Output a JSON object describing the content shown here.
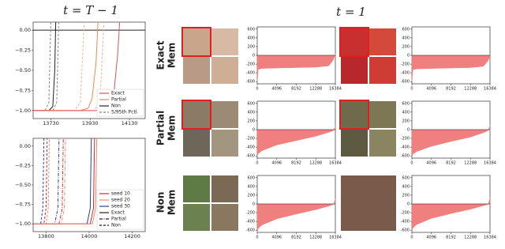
{
  "labels": {
    "left_title": "t = T − 1",
    "right_title": "t = 1",
    "row_labels": [
      [
        "Exact",
        "Mem"
      ],
      [
        "Partial",
        "Mem"
      ],
      [
        "Non",
        "Mem"
      ]
    ]
  },
  "chart_data": [
    {
      "type": "line",
      "xlim": [
        13640,
        14210
      ],
      "ylim": [
        -1.1,
        0.1
      ],
      "xticks": [
        13730,
        13930,
        14130
      ],
      "yticks": [
        {
          "value": 0,
          "label": "0.00"
        },
        {
          "value": -0.25,
          "label": "−0.25"
        },
        {
          "value": -0.5,
          "label": "−0.50"
        },
        {
          "value": -0.75,
          "label": "−0.75"
        },
        {
          "value": -1,
          "label": "−1.00"
        }
      ],
      "legend": [
        {
          "name": "Exact",
          "color": "#e0505a",
          "dash": "solid"
        },
        {
          "name": "Partial",
          "color": "#f08a4b",
          "dash": "solid"
        },
        {
          "name": "Non",
          "color": "#222222",
          "dash": "solid"
        },
        {
          "name": "5/95th Pctl.",
          "color": "#888888",
          "dash": "dashed"
        }
      ],
      "curves": [
        {
          "color": "#222222",
          "dash": "solid",
          "x": [
            13640,
            14210
          ],
          "values": [
            0,
            0
          ]
        },
        {
          "color": "#888888",
          "dash": "dashed",
          "x": [
            13640,
            13700,
            13720,
            13730
          ],
          "values": [
            -1,
            -1,
            -0.9,
            0.1
          ]
        },
        {
          "color": "#888888",
          "dash": "dashed",
          "x": [
            13640,
            13740,
            13760,
            13770
          ],
          "values": [
            -1,
            -1,
            -0.9,
            0.1
          ]
        },
        {
          "color": "#222222",
          "dash": "solid",
          "x": [
            13640,
            13720,
            13740,
            13750,
            13755
          ],
          "values": [
            -1,
            -1,
            -0.95,
            -0.5,
            0.1
          ]
        },
        {
          "color": "#f5b08a",
          "dash": "dashed",
          "x": [
            13640,
            13850,
            13880,
            13900
          ],
          "values": [
            -1,
            -1,
            -0.9,
            0.1
          ]
        },
        {
          "color": "#f5b08a",
          "dash": "dashed",
          "x": [
            13640,
            13950,
            13980,
            14000
          ],
          "values": [
            -1,
            -1,
            -0.9,
            0.1
          ]
        },
        {
          "color": "#f08a4b",
          "dash": "solid",
          "x": [
            13640,
            13880,
            13920,
            13940,
            13960,
            13970
          ],
          "values": [
            -1,
            -1,
            -0.97,
            -0.85,
            -0.4,
            0.1
          ]
        },
        {
          "color": "#e0505a",
          "dash": "solid",
          "x": [
            13640,
            13990,
            14030,
            14050,
            14070,
            14080
          ],
          "values": [
            -1,
            -1,
            -0.97,
            -0.8,
            -0.3,
            0.1
          ]
        }
      ]
    },
    {
      "type": "line",
      "xlim": [
        13740,
        14260
      ],
      "ylim": [
        -1.1,
        0.1
      ],
      "xticks": [
        13800,
        14000,
        14200
      ],
      "yticks": [
        {
          "value": 0,
          "label": "0.00"
        },
        {
          "value": -0.25,
          "label": "−0.25"
        },
        {
          "value": -0.5,
          "label": "−0.50"
        },
        {
          "value": -0.75,
          "label": "−0.75"
        },
        {
          "value": -1,
          "label": "−1.00"
        }
      ],
      "legend": [
        {
          "name": "seed 10",
          "color": "#d62728",
          "dash": "solid"
        },
        {
          "name": "seed 20",
          "color": "#f08a70",
          "dash": "solid"
        },
        {
          "name": "seed 30",
          "color": "#2b3f8f",
          "dash": "solid"
        },
        {
          "name": "Exact",
          "color": "#222222",
          "dash": "solid"
        },
        {
          "name": "Partial",
          "color": "#222222",
          "dash": "dashdot"
        },
        {
          "name": "Non",
          "color": "#222222",
          "dash": "dashed"
        }
      ],
      "curves": [
        {
          "color": "#2b3f8f",
          "dash": "dashed",
          "x": [
            13740,
            13775,
            13785,
            13790
          ],
          "values": [
            -1,
            -1,
            -0.8,
            0.1
          ]
        },
        {
          "color": "#d62728",
          "dash": "dashed",
          "x": [
            13740,
            13790,
            13800,
            13805
          ],
          "values": [
            -1,
            -1,
            -0.8,
            0.1
          ]
        },
        {
          "color": "#f08a70",
          "dash": "dashed",
          "x": [
            13740,
            13800,
            13810,
            13815
          ],
          "values": [
            -1,
            -1,
            -0.8,
            0.1
          ]
        },
        {
          "color": "#2b3f8f",
          "dash": "dashdot",
          "x": [
            13740,
            13840,
            13855,
            13860
          ],
          "values": [
            -1,
            -1,
            -0.8,
            0.1
          ]
        },
        {
          "color": "#d62728",
          "dash": "dashdot",
          "x": [
            13740,
            13860,
            13875,
            13880
          ],
          "values": [
            -1,
            -1,
            -0.8,
            0.1
          ]
        },
        {
          "color": "#f08a70",
          "dash": "dashdot",
          "x": [
            13740,
            13870,
            13885,
            13890
          ],
          "values": [
            -1,
            -1,
            -0.8,
            0.1
          ]
        },
        {
          "color": "#2b3f8f",
          "dash": "solid",
          "x": [
            13740,
            13990,
            14005,
            14010
          ],
          "values": [
            -1,
            -1,
            -0.8,
            0.1
          ]
        },
        {
          "color": "#d62728",
          "dash": "solid",
          "x": [
            13740,
            14005,
            14020,
            14025
          ],
          "values": [
            -1,
            -1,
            -0.8,
            0.1
          ]
        },
        {
          "color": "#f08a70",
          "dash": "solid",
          "x": [
            13740,
            14015,
            14030,
            14035
          ],
          "values": [
            -1,
            -1,
            -0.8,
            0.1
          ]
        }
      ]
    },
    {
      "type": "area",
      "color": "#f08080",
      "xlim": [
        0,
        16384
      ],
      "ylim": [
        -650,
        650
      ],
      "xticks": [
        0,
        4096,
        8192,
        12288,
        16384
      ],
      "yticks": [
        600,
        400,
        200,
        0,
        -200,
        -400,
        -600
      ],
      "x": [
        0,
        200,
        1000,
        4096,
        8192,
        12288,
        15000,
        16000,
        16384
      ],
      "values": [
        -620,
        -320,
        -300,
        -290,
        -280,
        -270,
        -240,
        -100,
        50
      ]
    },
    {
      "type": "area",
      "color": "#f08080",
      "xlim": [
        0,
        16384
      ],
      "ylim": [
        -650,
        650
      ],
      "xticks": [
        0,
        4096,
        8192,
        12288,
        16384
      ],
      "yticks": [
        600,
        400,
        200,
        0,
        -200,
        -400,
        -600
      ],
      "x": [
        0,
        200,
        1000,
        4096,
        8192,
        12288,
        15000,
        16000,
        16384
      ],
      "values": [
        -600,
        -330,
        -310,
        -300,
        -290,
        -280,
        -250,
        -120,
        0
      ]
    },
    {
      "type": "area",
      "color": "#f08080",
      "xlim": [
        0,
        16384
      ],
      "ylim": [
        -650,
        650
      ],
      "xticks": [
        0,
        4096,
        8192,
        12288,
        16384
      ],
      "yticks": [
        600,
        400,
        200,
        0,
        -200,
        -400,
        -600
      ],
      "x": [
        0,
        200,
        1000,
        4096,
        8192,
        12288,
        15000,
        16000,
        16384
      ],
      "values": [
        -600,
        -550,
        -480,
        -350,
        -250,
        -150,
        -60,
        -20,
        80
      ]
    },
    {
      "type": "area",
      "color": "#f08080",
      "xlim": [
        0,
        16384
      ],
      "ylim": [
        -650,
        650
      ],
      "xticks": [
        0,
        4096,
        8192,
        12288,
        16384
      ],
      "yticks": [
        600,
        400,
        200,
        0,
        -200,
        -400,
        -600
      ],
      "x": [
        0,
        200,
        1000,
        4096,
        8192,
        12288,
        15000,
        16000,
        16384
      ],
      "values": [
        -620,
        -560,
        -500,
        -380,
        -270,
        -170,
        -70,
        -20,
        100
      ]
    },
    {
      "type": "area",
      "color": "#f08080",
      "xlim": [
        0,
        16384
      ],
      "ylim": [
        -650,
        650
      ],
      "xticks": [
        0,
        4096,
        8192,
        12288,
        16384
      ],
      "yticks": [
        600,
        400,
        200,
        0,
        -200,
        -400,
        -600
      ],
      "x": [
        0,
        200,
        1000,
        4096,
        8192,
        12288,
        15000,
        16000,
        16384
      ],
      "values": [
        -640,
        -560,
        -480,
        -340,
        -230,
        -130,
        -50,
        -10,
        120
      ]
    },
    {
      "type": "area",
      "color": "#f08080",
      "xlim": [
        0,
        16384
      ],
      "ylim": [
        -650,
        650
      ],
      "xticks": [
        0,
        4096,
        8192,
        12288,
        16384
      ],
      "yticks": [
        600,
        400,
        200,
        0,
        -200,
        -400,
        -600
      ],
      "x": [
        0,
        200,
        1000,
        4096,
        8192,
        12288,
        15000,
        16000,
        16384
      ],
      "values": [
        -620,
        -550,
        -470,
        -330,
        -220,
        -120,
        -40,
        -10,
        140
      ]
    }
  ]
}
